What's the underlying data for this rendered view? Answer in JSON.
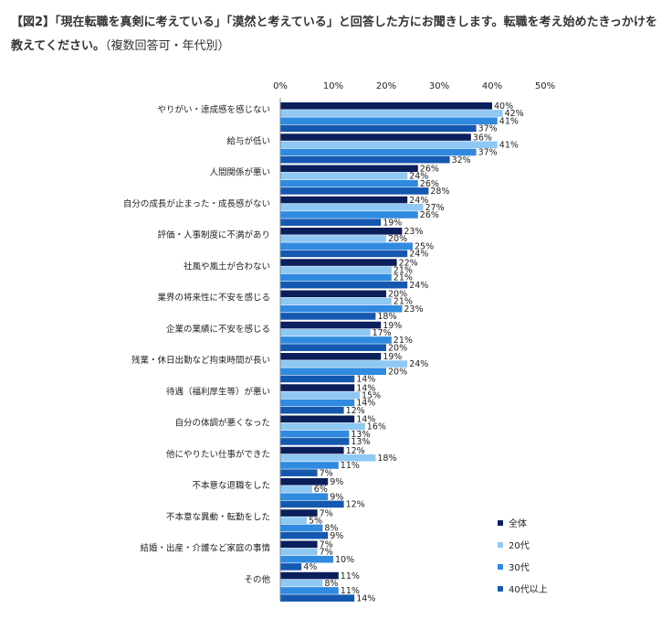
{
  "title": {
    "main": "【図2】「現在転職を真剣に考えている」「漠然と考えている」と回答した方にお聞きします。転職を考え始めたきっかけを教えてください。",
    "note": "（複数回答可・年代別）"
  },
  "chart_data": {
    "type": "bar",
    "orientation": "horizontal",
    "title": "【図2】「現在転職を真剣に考えている」「漠然と考えている」と回答した方にお聞きします。転職を考え始めたきっかけを教えてください。（複数回答可・年代別）",
    "xlim": [
      0,
      50
    ],
    "ticks": [
      "0%",
      "10%",
      "20%",
      "30%",
      "40%",
      "50%"
    ],
    "unit": "%",
    "legend_position": "bottom-right",
    "grid": true,
    "categories": [
      "やりがい・達成感を感じない",
      "給与が低い",
      "人間関係が悪い",
      "自分の成長が止まった・成長感がない",
      "評価・人事制度に不満があり",
      "社風や風土が合わない",
      "業界の将来性に不安を感じる",
      "企業の業績に不安を感じる",
      "残業・休日出勤など拘束時間が長い",
      "待遇（福利厚生等）が悪い",
      "自分の体調が悪くなった",
      "他にやりたい仕事ができた",
      "不本意な退職をした",
      "不本意な異動・転勤をした",
      "結婚・出産・介護など家庭の事情",
      "その他"
    ],
    "series": [
      {
        "name": "全体",
        "color": "#0b1f5c",
        "values": [
          40,
          36,
          26,
          24,
          23,
          22,
          20,
          19,
          19,
          14,
          14,
          12,
          9,
          7,
          7,
          11
        ]
      },
      {
        "name": "20代",
        "color": "#8fc8f2",
        "values": [
          42,
          41,
          24,
          27,
          20,
          21,
          21,
          17,
          24,
          15,
          16,
          18,
          6,
          5,
          7,
          8
        ]
      },
      {
        "name": "30代",
        "color": "#2f8ae0",
        "values": [
          41,
          37,
          26,
          26,
          25,
          21,
          23,
          21,
          20,
          14,
          13,
          11,
          9,
          8,
          10,
          11
        ]
      },
      {
        "name": "40代以上",
        "color": "#1558b0",
        "values": [
          37,
          32,
          28,
          19,
          24,
          24,
          18,
          20,
          14,
          12,
          13,
          7,
          12,
          9,
          4,
          14
        ]
      }
    ]
  }
}
